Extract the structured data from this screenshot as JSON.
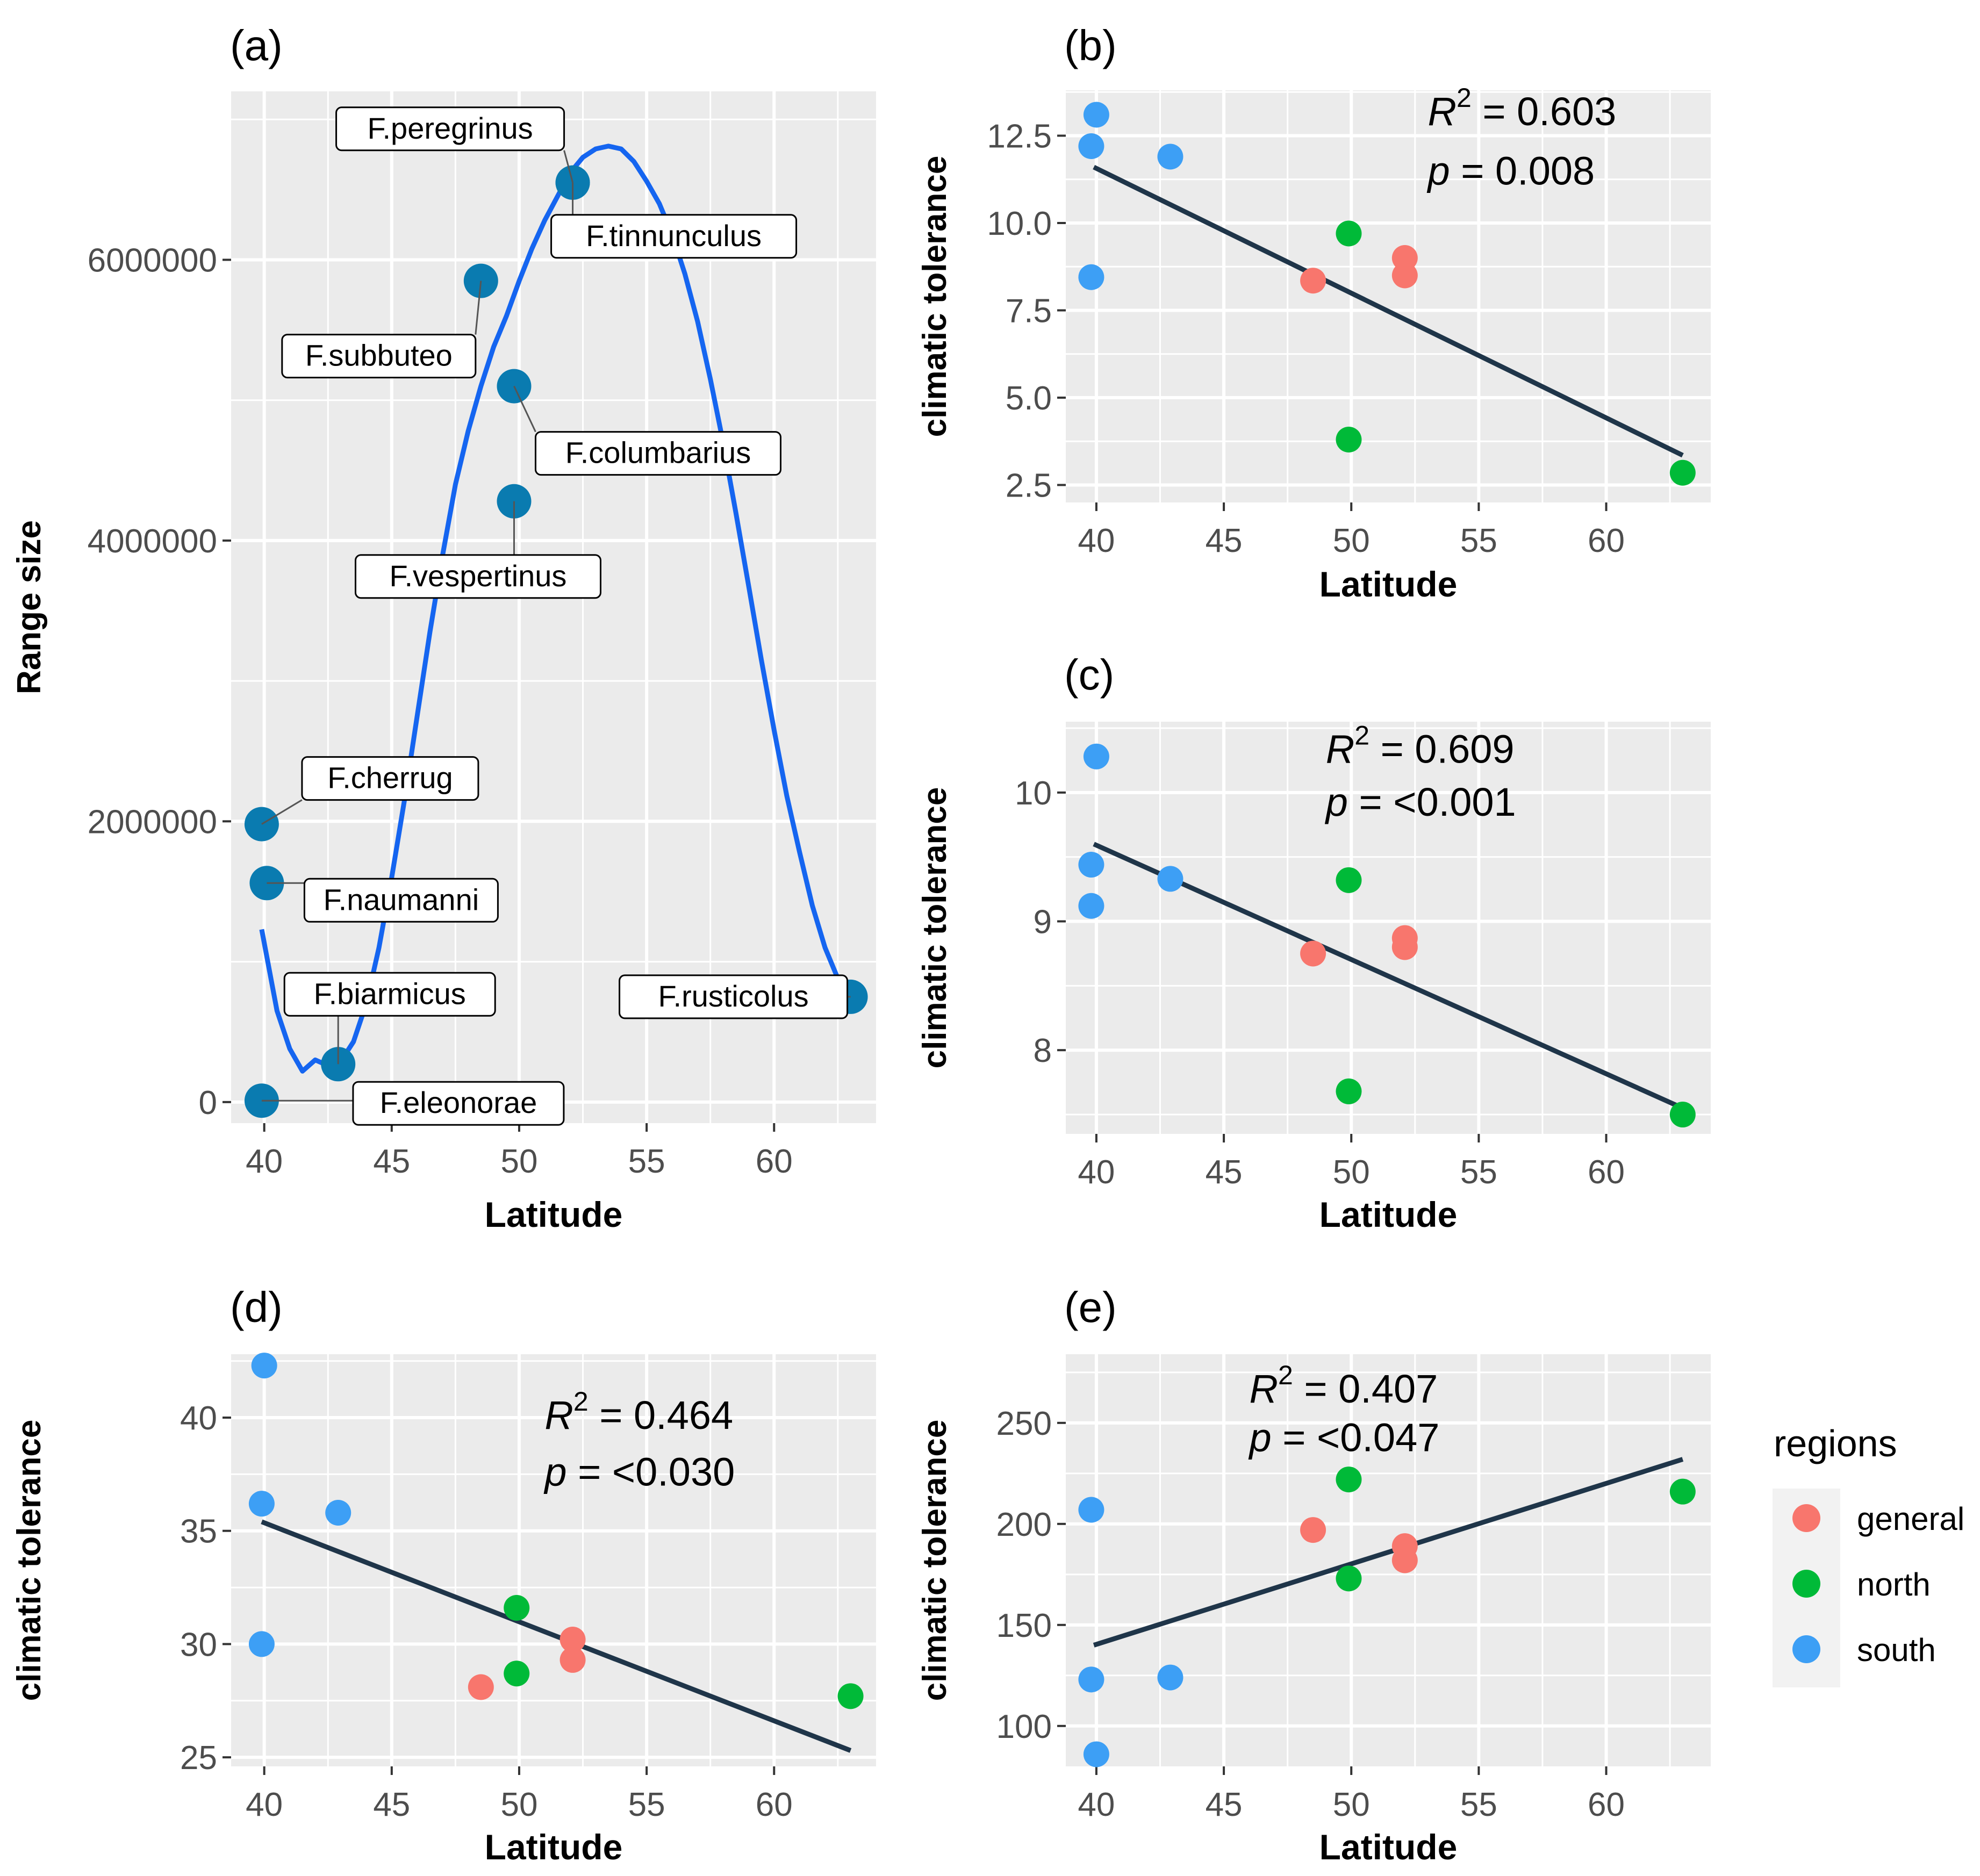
{
  "chart_data": [
    {
      "id": "a",
      "panel_label": "(a)",
      "type": "scatter",
      "xlabel": "Latitude",
      "ylabel": "Range size",
      "xlim": [
        38.7,
        64.0
      ],
      "ylim": [
        -150000,
        7200000
      ],
      "xticks": [
        40,
        45,
        50,
        55,
        60
      ],
      "xtick_labels": [
        "40",
        "45",
        "50",
        "55",
        "60"
      ],
      "yticks": [
        0,
        2000000,
        4000000,
        6000000
      ],
      "ytick_labels": [
        "0",
        "2000000",
        "4000000",
        "6000000"
      ],
      "point_color": "#0a7bb0",
      "curve_color": "#1565f0",
      "points": [
        {
          "name": "F.peregrinus",
          "x": 52.1,
          "y": 6550000
        },
        {
          "name": "F.tinnunculus",
          "x": 52.1,
          "y": 6550000
        },
        {
          "name": "F.subbuteo",
          "x": 48.5,
          "y": 5850000
        },
        {
          "name": "F.columbarius",
          "x": 49.8,
          "y": 5100000
        },
        {
          "name": "F.vespertinus",
          "x": 49.8,
          "y": 4280000
        },
        {
          "name": "F.cherrug",
          "x": 39.9,
          "y": 1980000
        },
        {
          "name": "F.naumanni",
          "x": 40.1,
          "y": 1560000
        },
        {
          "name": "F.biarmicus",
          "x": 42.9,
          "y": 270000
        },
        {
          "name": "F.eleonorae",
          "x": 39.9,
          "y": 10000
        },
        {
          "name": "F.rusticolus",
          "x": 63.0,
          "y": 750000
        }
      ],
      "curve": {
        "x": [
          39.9,
          40.5,
          41.0,
          41.5,
          42.0,
          42.5,
          43.0,
          43.5,
          44.0,
          44.5,
          45.0,
          45.5,
          46.0,
          46.5,
          47.0,
          47.5,
          48.0,
          48.5,
          49.0,
          49.5,
          50.0,
          50.5,
          51.0,
          51.5,
          52.0,
          52.5,
          53.0,
          53.5,
          54.0,
          54.5,
          55.0,
          55.5,
          56.0,
          56.5,
          57.0,
          57.5,
          58.0,
          58.5,
          59.0,
          59.5,
          60.0,
          60.5,
          61.0,
          61.5,
          62.0,
          62.5,
          63.0
        ],
        "y": [
          1230000,
          650000,
          380000,
          220000,
          300000,
          260000,
          290000,
          430000,
          700000,
          1100000,
          1600000,
          2150000,
          2750000,
          3350000,
          3900000,
          4400000,
          4780000,
          5100000,
          5380000,
          5600000,
          5850000,
          6080000,
          6280000,
          6450000,
          6620000,
          6730000,
          6790000,
          6810000,
          6790000,
          6700000,
          6560000,
          6400000,
          6180000,
          5900000,
          5560000,
          5150000,
          4700000,
          4200000,
          3680000,
          3150000,
          2650000,
          2180000,
          1780000,
          1400000,
          1100000,
          880000,
          720000
        ]
      },
      "labels": [
        {
          "text": "F.peregrinus",
          "target": 0
        },
        {
          "text": "F.tinnunculus",
          "target": 1
        },
        {
          "text": "F.subbuteo",
          "target": 2
        },
        {
          "text": "F.columbarius",
          "target": 3
        },
        {
          "text": "F.vespertinus",
          "target": 4
        },
        {
          "text": "F.cherrug",
          "target": 5
        },
        {
          "text": "F.naumanni",
          "target": 6
        },
        {
          "text": "F.biarmicus",
          "target": 7
        },
        {
          "text": "F.eleonorae",
          "target": 8
        },
        {
          "text": "F.rusticolus",
          "target": 9
        }
      ]
    },
    {
      "id": "b",
      "panel_label": "(b)",
      "type": "scatter",
      "xlabel": "Latitude",
      "ylabel": "climatic tolerance",
      "xlim": [
        38.8,
        64.1
      ],
      "ylim": [
        2.0,
        13.8
      ],
      "xticks": [
        40,
        45,
        50,
        55,
        60
      ],
      "xtick_labels": [
        "40",
        "45",
        "50",
        "55",
        "60"
      ],
      "yticks": [
        2.5,
        5.0,
        7.5,
        10.0,
        12.5
      ],
      "ytick_labels": [
        "2.5",
        "5.0",
        "7.5",
        "10.0",
        "12.5"
      ],
      "annotation": {
        "r2_prefix": "R",
        "r2_sup": "2",
        "r2_value": " = 0.603",
        "p_prefix": "p",
        "p_value": " = 0.008",
        "x": 53.0,
        "y1": 12.8,
        "y2": 11.1
      },
      "fit": {
        "x": [
          39.9,
          63.0
        ],
        "y": [
          11.6,
          3.35
        ]
      },
      "points": [
        {
          "x": 40.0,
          "y": 13.1,
          "region": "south"
        },
        {
          "x": 39.8,
          "y": 12.2,
          "region": "south"
        },
        {
          "x": 42.9,
          "y": 11.9,
          "region": "south"
        },
        {
          "x": 39.8,
          "y": 8.45,
          "region": "south"
        },
        {
          "x": 48.5,
          "y": 8.35,
          "region": "general"
        },
        {
          "x": 52.1,
          "y": 9.0,
          "region": "general"
        },
        {
          "x": 52.1,
          "y": 8.5,
          "region": "general"
        },
        {
          "x": 49.9,
          "y": 9.7,
          "region": "north"
        },
        {
          "x": 49.9,
          "y": 3.8,
          "region": "north"
        },
        {
          "x": 63.0,
          "y": 2.85,
          "region": "north"
        }
      ]
    },
    {
      "id": "c",
      "panel_label": "(c)",
      "type": "scatter",
      "xlabel": "Latitude",
      "ylabel": "climatic tolerance",
      "xlim": [
        38.8,
        64.1
      ],
      "ylim": [
        7.35,
        10.55
      ],
      "xticks": [
        40,
        45,
        50,
        55,
        60
      ],
      "xtick_labels": [
        "40",
        "45",
        "50",
        "55",
        "60"
      ],
      "yticks": [
        8,
        9,
        10
      ],
      "ytick_labels": [
        "8",
        "9",
        "10"
      ],
      "annotation": {
        "r2_prefix": "R",
        "r2_sup": "2",
        "r2_value": " = 0.609",
        "p_prefix": "p",
        "p_value": " = <0.001",
        "x": 49.0,
        "y1": 10.23,
        "y2": 9.82
      },
      "fit": {
        "x": [
          39.9,
          63.0
        ],
        "y": [
          9.6,
          7.55
        ]
      },
      "points": [
        {
          "x": 40.0,
          "y": 10.28,
          "region": "south"
        },
        {
          "x": 39.8,
          "y": 9.44,
          "region": "south"
        },
        {
          "x": 39.8,
          "y": 9.12,
          "region": "south"
        },
        {
          "x": 42.9,
          "y": 9.33,
          "region": "south"
        },
        {
          "x": 48.5,
          "y": 8.75,
          "region": "general"
        },
        {
          "x": 52.1,
          "y": 8.87,
          "region": "general"
        },
        {
          "x": 52.1,
          "y": 8.8,
          "region": "general"
        },
        {
          "x": 49.9,
          "y": 9.32,
          "region": "north"
        },
        {
          "x": 49.9,
          "y": 7.68,
          "region": "north"
        },
        {
          "x": 63.0,
          "y": 7.5,
          "region": "north"
        }
      ]
    },
    {
      "id": "d",
      "panel_label": "(d)",
      "type": "scatter",
      "xlabel": "Latitude",
      "ylabel": "climatic tolerance",
      "xlim": [
        38.7,
        64.0
      ],
      "ylim": [
        24.6,
        42.8
      ],
      "xticks": [
        40,
        45,
        50,
        55,
        60
      ],
      "xtick_labels": [
        "40",
        "45",
        "50",
        "55",
        "60"
      ],
      "yticks": [
        25,
        30,
        35,
        40
      ],
      "ytick_labels": [
        "25",
        "30",
        "35",
        "40"
      ],
      "annotation": {
        "r2_prefix": "R",
        "r2_sup": "2",
        "r2_value": " = 0.464",
        "p_prefix": "p",
        "p_value": " = <0.030",
        "x": 51.0,
        "y1": 39.5,
        "y2": 37.0
      },
      "fit": {
        "x": [
          39.9,
          63.0
        ],
        "y": [
          35.4,
          25.3
        ]
      },
      "points": [
        {
          "x": 40.0,
          "y": 42.3,
          "region": "south"
        },
        {
          "x": 39.9,
          "y": 36.2,
          "region": "south"
        },
        {
          "x": 42.9,
          "y": 35.8,
          "region": "south"
        },
        {
          "x": 39.9,
          "y": 30.0,
          "region": "south"
        },
        {
          "x": 48.5,
          "y": 28.1,
          "region": "general"
        },
        {
          "x": 52.1,
          "y": 30.2,
          "region": "general"
        },
        {
          "x": 52.1,
          "y": 29.3,
          "region": "general"
        },
        {
          "x": 49.9,
          "y": 31.6,
          "region": "north"
        },
        {
          "x": 49.9,
          "y": 28.7,
          "region": "north"
        },
        {
          "x": 63.0,
          "y": 27.7,
          "region": "north"
        }
      ]
    },
    {
      "id": "e",
      "panel_label": "(e)",
      "type": "scatter",
      "xlabel": "Latitude",
      "ylabel": "climatic tolerance",
      "xlim": [
        38.8,
        64.1
      ],
      "ylim": [
        80,
        284
      ],
      "xticks": [
        40,
        45,
        50,
        55,
        60
      ],
      "xtick_labels": [
        "40",
        "45",
        "50",
        "55",
        "60"
      ],
      "yticks": [
        100,
        150,
        200,
        250
      ],
      "ytick_labels": [
        "100",
        "150",
        "200",
        "250"
      ],
      "annotation": {
        "r2_prefix": "R",
        "r2_sup": "2",
        "r2_value": " = 0.407",
        "p_prefix": "p",
        "p_value": " = <0.047",
        "x": 46.0,
        "y1": 260,
        "y2": 236
      },
      "fit": {
        "x": [
          39.9,
          63.0
        ],
        "y": [
          140,
          232
        ]
      },
      "points": [
        {
          "x": 39.8,
          "y": 207,
          "region": "south"
        },
        {
          "x": 39.8,
          "y": 123,
          "region": "south"
        },
        {
          "x": 42.9,
          "y": 124,
          "region": "south"
        },
        {
          "x": 40.0,
          "y": 86,
          "region": "south"
        },
        {
          "x": 48.5,
          "y": 197,
          "region": "general"
        },
        {
          "x": 52.1,
          "y": 189,
          "region": "general"
        },
        {
          "x": 52.1,
          "y": 182,
          "region": "general"
        },
        {
          "x": 49.9,
          "y": 222,
          "region": "north"
        },
        {
          "x": 49.9,
          "y": 173,
          "region": "north"
        },
        {
          "x": 63.0,
          "y": 216,
          "region": "north"
        }
      ]
    }
  ],
  "legend": {
    "title": "regions",
    "items": [
      {
        "key": "general",
        "label": "general",
        "color": "#f8766d"
      },
      {
        "key": "north",
        "label": "north",
        "color": "#00ba38"
      },
      {
        "key": "south",
        "label": "south",
        "color": "#3d9ff5"
      }
    ]
  },
  "colors": {
    "panel_bg": "#ebebeb",
    "grid": "#ffffff",
    "fit_line": "#1f3549",
    "text": "#000000",
    "tick_text": "#4d4d4d"
  }
}
